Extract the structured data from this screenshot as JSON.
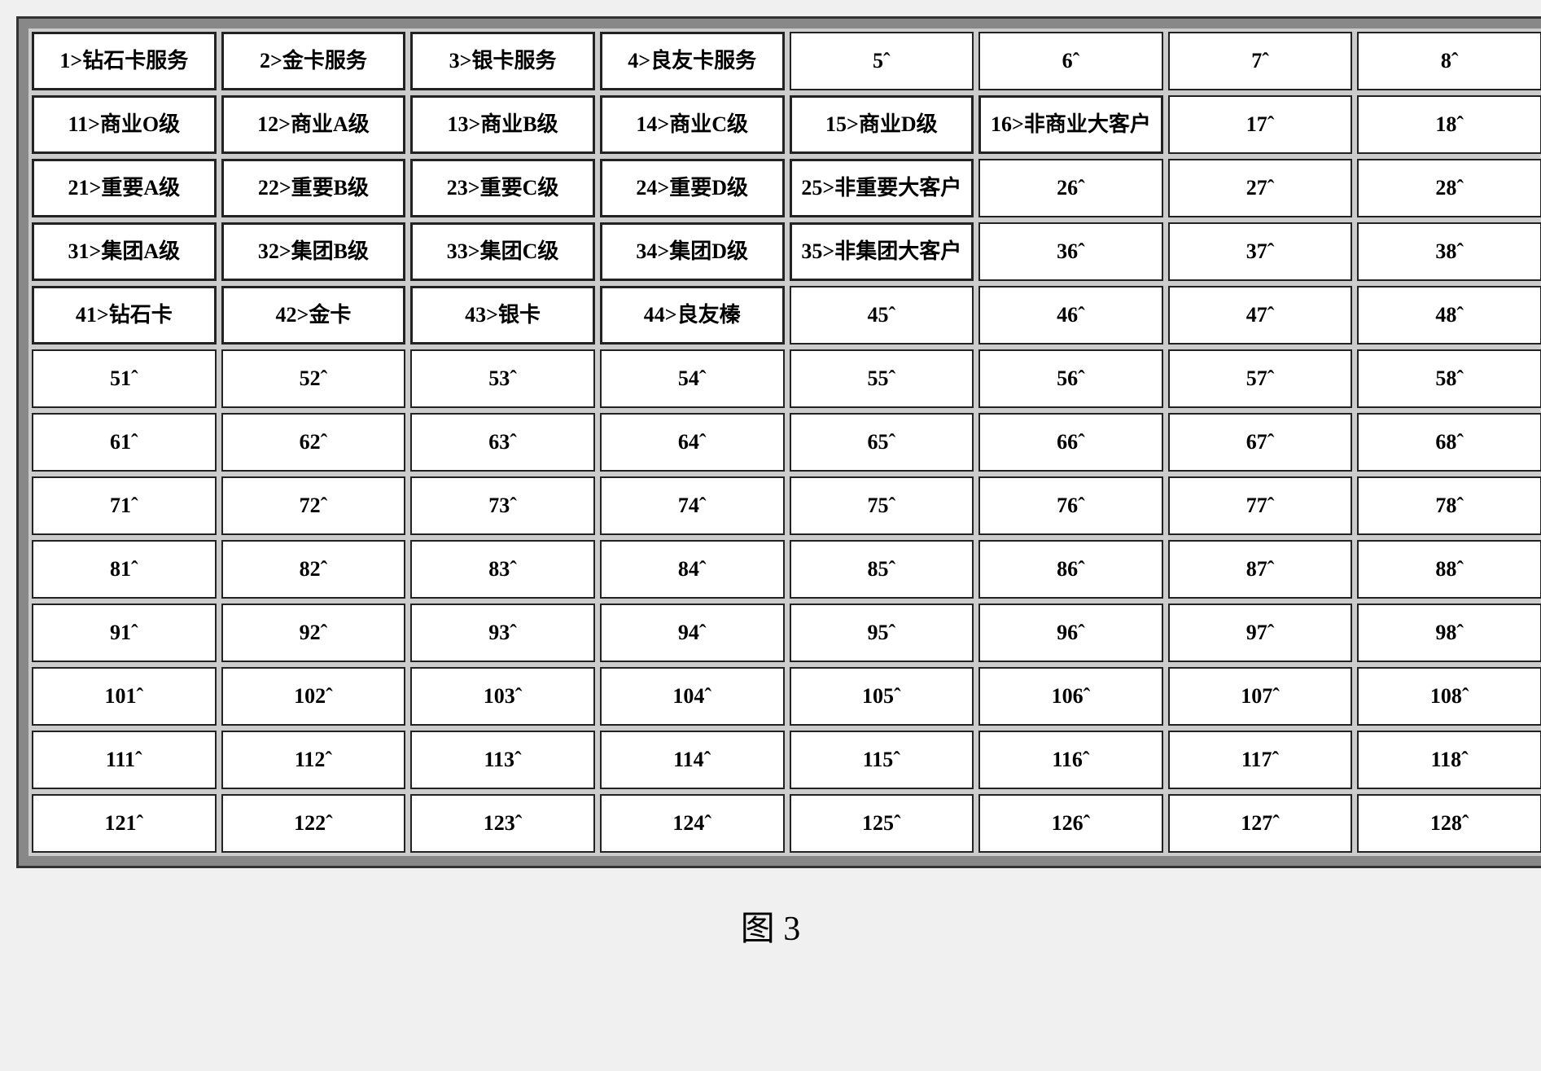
{
  "caption": "图 3",
  "grid": {
    "columns": 8,
    "rows": 13,
    "cell_bg": "#ffffff",
    "cell_border": "#222222",
    "frame_bg": "#888888",
    "font_size": 26,
    "cells": [
      {
        "label": "1>钻石卡服务",
        "bold_border": true
      },
      {
        "label": "2>金卡服务",
        "bold_border": true
      },
      {
        "label": "3>银卡服务",
        "bold_border": true
      },
      {
        "label": "4>良友卡服务",
        "bold_border": true
      },
      {
        "label": "5ˆ",
        "bold_border": false
      },
      {
        "label": "6ˆ",
        "bold_border": false
      },
      {
        "label": "7ˆ",
        "bold_border": false
      },
      {
        "label": "8ˆ",
        "bold_border": false
      },
      {
        "label": "11>商业O级",
        "bold_border": true
      },
      {
        "label": "12>商业A级",
        "bold_border": true
      },
      {
        "label": "13>商业B级",
        "bold_border": true
      },
      {
        "label": "14>商业C级",
        "bold_border": true
      },
      {
        "label": "15>商业D级",
        "bold_border": true
      },
      {
        "label": "16>非商业大客户",
        "bold_border": true
      },
      {
        "label": "17ˆ",
        "bold_border": false
      },
      {
        "label": "18ˆ",
        "bold_border": false
      },
      {
        "label": "21>重要A级",
        "bold_border": true
      },
      {
        "label": "22>重要B级",
        "bold_border": true
      },
      {
        "label": "23>重要C级",
        "bold_border": true
      },
      {
        "label": "24>重要D级",
        "bold_border": true
      },
      {
        "label": "25>非重要大客户",
        "bold_border": true
      },
      {
        "label": "26ˆ",
        "bold_border": false
      },
      {
        "label": "27ˆ",
        "bold_border": false
      },
      {
        "label": "28ˆ",
        "bold_border": false
      },
      {
        "label": "31>集团A级",
        "bold_border": true
      },
      {
        "label": "32>集团B级",
        "bold_border": true
      },
      {
        "label": "33>集团C级",
        "bold_border": true
      },
      {
        "label": "34>集团D级",
        "bold_border": true
      },
      {
        "label": "35>非集团大客户",
        "bold_border": true
      },
      {
        "label": "36ˆ",
        "bold_border": false
      },
      {
        "label": "37ˆ",
        "bold_border": false
      },
      {
        "label": "38ˆ",
        "bold_border": false
      },
      {
        "label": "41>钻石卡",
        "bold_border": true
      },
      {
        "label": "42>金卡",
        "bold_border": true
      },
      {
        "label": "43>银卡",
        "bold_border": true
      },
      {
        "label": "44>良友榛",
        "bold_border": true
      },
      {
        "label": "45ˆ",
        "bold_border": false
      },
      {
        "label": "46ˆ",
        "bold_border": false
      },
      {
        "label": "47ˆ",
        "bold_border": false
      },
      {
        "label": "48ˆ",
        "bold_border": false
      },
      {
        "label": "51ˆ",
        "bold_border": false
      },
      {
        "label": "52ˆ",
        "bold_border": false
      },
      {
        "label": "53ˆ",
        "bold_border": false
      },
      {
        "label": "54ˆ",
        "bold_border": false
      },
      {
        "label": "55ˆ",
        "bold_border": false
      },
      {
        "label": "56ˆ",
        "bold_border": false
      },
      {
        "label": "57ˆ",
        "bold_border": false
      },
      {
        "label": "58ˆ",
        "bold_border": false
      },
      {
        "label": "61ˆ",
        "bold_border": false
      },
      {
        "label": "62ˆ",
        "bold_border": false
      },
      {
        "label": "63ˆ",
        "bold_border": false
      },
      {
        "label": "64ˆ",
        "bold_border": false
      },
      {
        "label": "65ˆ",
        "bold_border": false
      },
      {
        "label": "66ˆ",
        "bold_border": false
      },
      {
        "label": "67ˆ",
        "bold_border": false
      },
      {
        "label": "68ˆ",
        "bold_border": false
      },
      {
        "label": "71ˆ",
        "bold_border": false
      },
      {
        "label": "72ˆ",
        "bold_border": false
      },
      {
        "label": "73ˆ",
        "bold_border": false
      },
      {
        "label": "74ˆ",
        "bold_border": false
      },
      {
        "label": "75ˆ",
        "bold_border": false
      },
      {
        "label": "76ˆ",
        "bold_border": false
      },
      {
        "label": "77ˆ",
        "bold_border": false
      },
      {
        "label": "78ˆ",
        "bold_border": false
      },
      {
        "label": "81ˆ",
        "bold_border": false
      },
      {
        "label": "82ˆ",
        "bold_border": false
      },
      {
        "label": "83ˆ",
        "bold_border": false
      },
      {
        "label": "84ˆ",
        "bold_border": false
      },
      {
        "label": "85ˆ",
        "bold_border": false
      },
      {
        "label": "86ˆ",
        "bold_border": false
      },
      {
        "label": "87ˆ",
        "bold_border": false
      },
      {
        "label": "88ˆ",
        "bold_border": false
      },
      {
        "label": "91ˆ",
        "bold_border": false
      },
      {
        "label": "92ˆ",
        "bold_border": false
      },
      {
        "label": "93ˆ",
        "bold_border": false
      },
      {
        "label": "94ˆ",
        "bold_border": false
      },
      {
        "label": "95ˆ",
        "bold_border": false
      },
      {
        "label": "96ˆ",
        "bold_border": false
      },
      {
        "label": "97ˆ",
        "bold_border": false
      },
      {
        "label": "98ˆ",
        "bold_border": false
      },
      {
        "label": "101ˆ",
        "bold_border": false
      },
      {
        "label": "102ˆ",
        "bold_border": false
      },
      {
        "label": "103ˆ",
        "bold_border": false
      },
      {
        "label": "104ˆ",
        "bold_border": false
      },
      {
        "label": "105ˆ",
        "bold_border": false
      },
      {
        "label": "106ˆ",
        "bold_border": false
      },
      {
        "label": "107ˆ",
        "bold_border": false
      },
      {
        "label": "108ˆ",
        "bold_border": false
      },
      {
        "label": "111ˆ",
        "bold_border": false
      },
      {
        "label": "112ˆ",
        "bold_border": false
      },
      {
        "label": "113ˆ",
        "bold_border": false
      },
      {
        "label": "114ˆ",
        "bold_border": false
      },
      {
        "label": "115ˆ",
        "bold_border": false
      },
      {
        "label": "116ˆ",
        "bold_border": false
      },
      {
        "label": "117ˆ",
        "bold_border": false
      },
      {
        "label": "118ˆ",
        "bold_border": false
      },
      {
        "label": "121ˆ",
        "bold_border": false
      },
      {
        "label": "122ˆ",
        "bold_border": false
      },
      {
        "label": "123ˆ",
        "bold_border": false
      },
      {
        "label": "124ˆ",
        "bold_border": false
      },
      {
        "label": "125ˆ",
        "bold_border": false
      },
      {
        "label": "126ˆ",
        "bold_border": false
      },
      {
        "label": "127ˆ",
        "bold_border": false
      },
      {
        "label": "128ˆ",
        "bold_border": false
      }
    ]
  }
}
